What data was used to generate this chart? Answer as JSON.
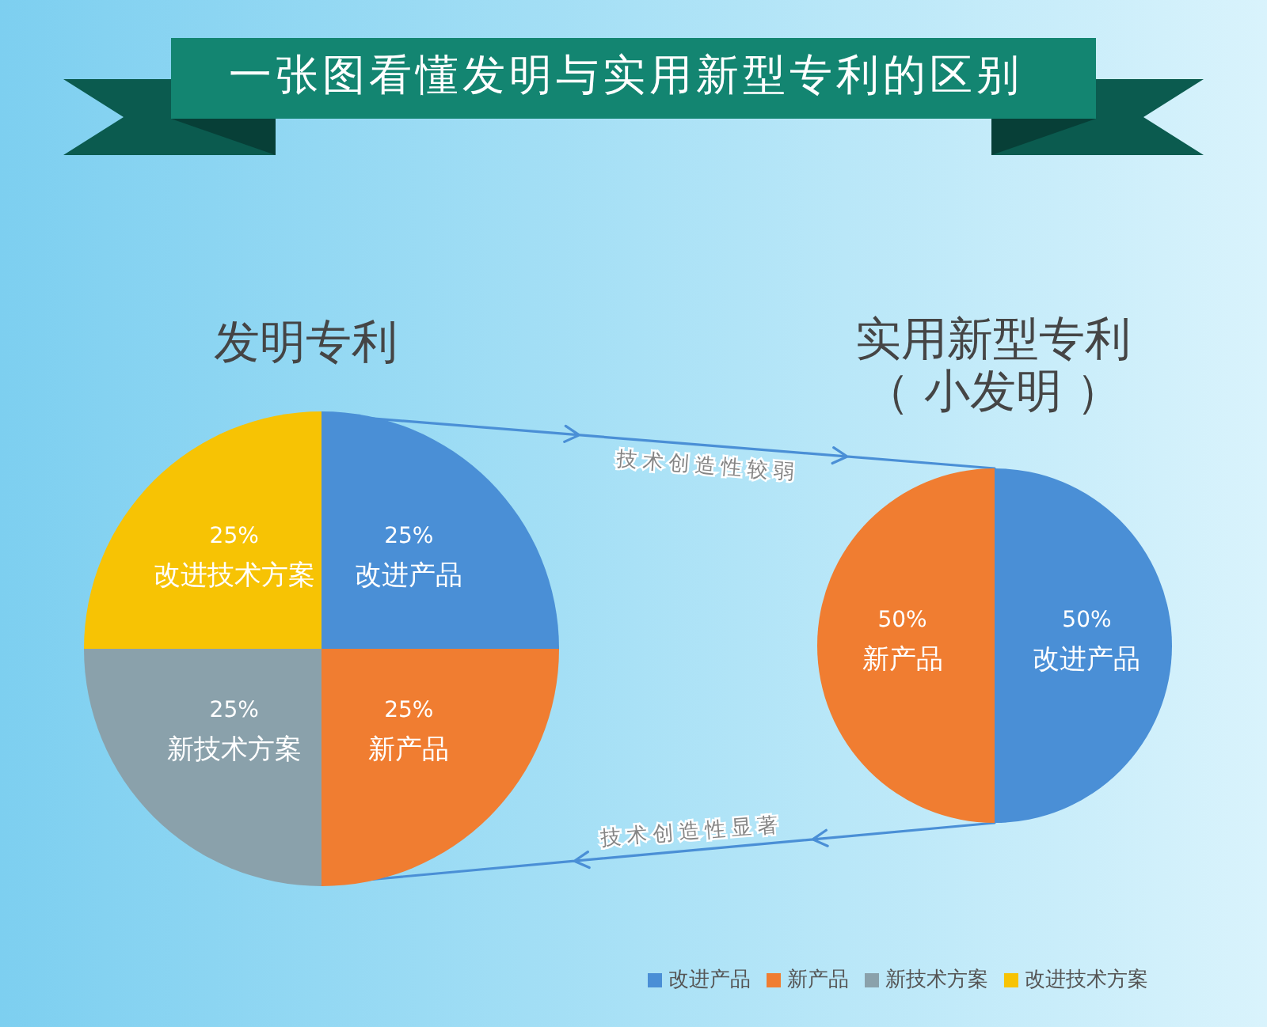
{
  "chart_data": [
    {
      "type": "pie",
      "title": "发明专利",
      "categories": [
        "改进产品",
        "新产品",
        "新技术方案",
        "改进技术方案"
      ],
      "values": [
        25,
        25,
        25,
        25
      ],
      "colors": [
        "#4a8fd6",
        "#f07d31",
        "#8aa1ab",
        "#f7c304"
      ],
      "value_labels": [
        "25%",
        "25%",
        "25%",
        "25%"
      ],
      "legend": "bottom right",
      "annotations": [
        "一张图看懂发明与实用新型专利的区别",
        "技术创造性较弱",
        "技术创造性显著"
      ]
    },
    {
      "type": "pie",
      "title": "实用新型专利（ 小发明 ）",
      "categories": [
        "改进产品",
        "新产品"
      ],
      "values": [
        50,
        50
      ],
      "colors": [
        "#4a8fd6",
        "#f07d31"
      ],
      "value_labels": [
        "50%",
        "50%"
      ]
    }
  ]
}
